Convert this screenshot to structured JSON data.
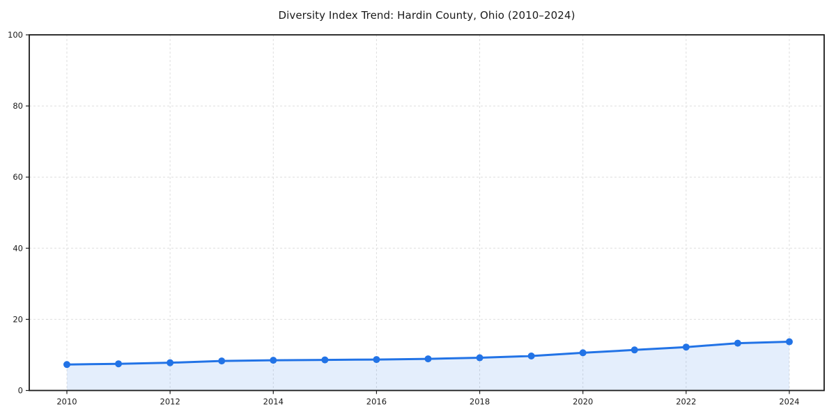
{
  "chart_data": {
    "type": "line",
    "title": "Diversity Index Trend: Hardin County, Ohio (2010–2024)",
    "xlabel": "",
    "ylabel": "",
    "x": [
      2010,
      2011,
      2012,
      2013,
      2014,
      2015,
      2016,
      2017,
      2018,
      2019,
      2020,
      2021,
      2022,
      2023,
      2024
    ],
    "series": [
      {
        "name": "Diversity Index",
        "values": [
          7.3,
          7.5,
          7.8,
          8.3,
          8.5,
          8.6,
          8.7,
          8.9,
          9.2,
          9.7,
          10.6,
          11.4,
          12.2,
          13.3,
          13.7
        ]
      }
    ],
    "xticks": [
      "2010",
      "2012",
      "2014",
      "2016",
      "2018",
      "2020",
      "2022",
      "2024"
    ],
    "yticks": [
      "0",
      "20",
      "40",
      "60",
      "80",
      "100"
    ],
    "ylim": [
      0,
      100
    ],
    "xlim": [
      2010,
      2024
    ],
    "grid": true,
    "grid_style": "dashed",
    "legend": "none",
    "marker": "circle",
    "area_fill": true,
    "colors": {
      "line": "#2273e6",
      "marker": "#2273e6",
      "area": "rgba(34,115,230,0.12)",
      "grid": "#dedede",
      "axis": "#1a1a1a",
      "text": "#1a1a1a",
      "background": "#ffffff"
    }
  }
}
